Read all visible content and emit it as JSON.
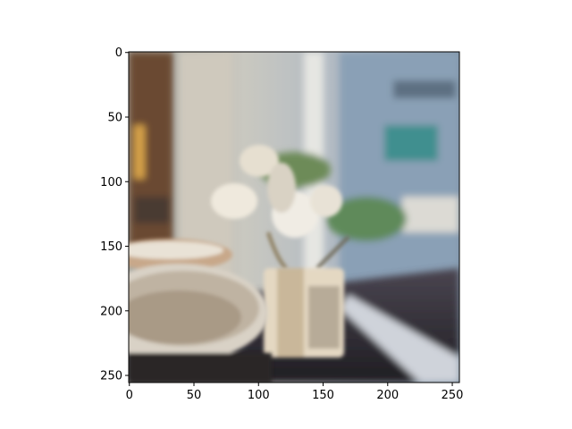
{
  "chart_data": {
    "type": "heatmap",
    "content": "image",
    "title": "",
    "xlabel": "",
    "ylabel": "",
    "xlim": [
      -0.5,
      255.5
    ],
    "ylim": [
      255.5,
      -0.5
    ],
    "x_ticks": [
      0,
      50,
      100,
      150,
      200,
      250
    ],
    "y_ticks": [
      0,
      50,
      100,
      150,
      200,
      250
    ],
    "x_tick_labels": [
      "0",
      "50",
      "100",
      "150",
      "200",
      "250"
    ],
    "y_tick_labels": [
      "0",
      "50",
      "100",
      "150",
      "200",
      "250"
    ],
    "grid": false,
    "legend": "none",
    "colors": {
      "background": "#ffffff",
      "axis": "#000000",
      "image_palette": [
        "#6b4a32",
        "#b9b2a6",
        "#d8d4cc",
        "#8ea2b4",
        "#5f8a5a",
        "#2c2a2e",
        "#f0ece4"
      ]
    }
  }
}
